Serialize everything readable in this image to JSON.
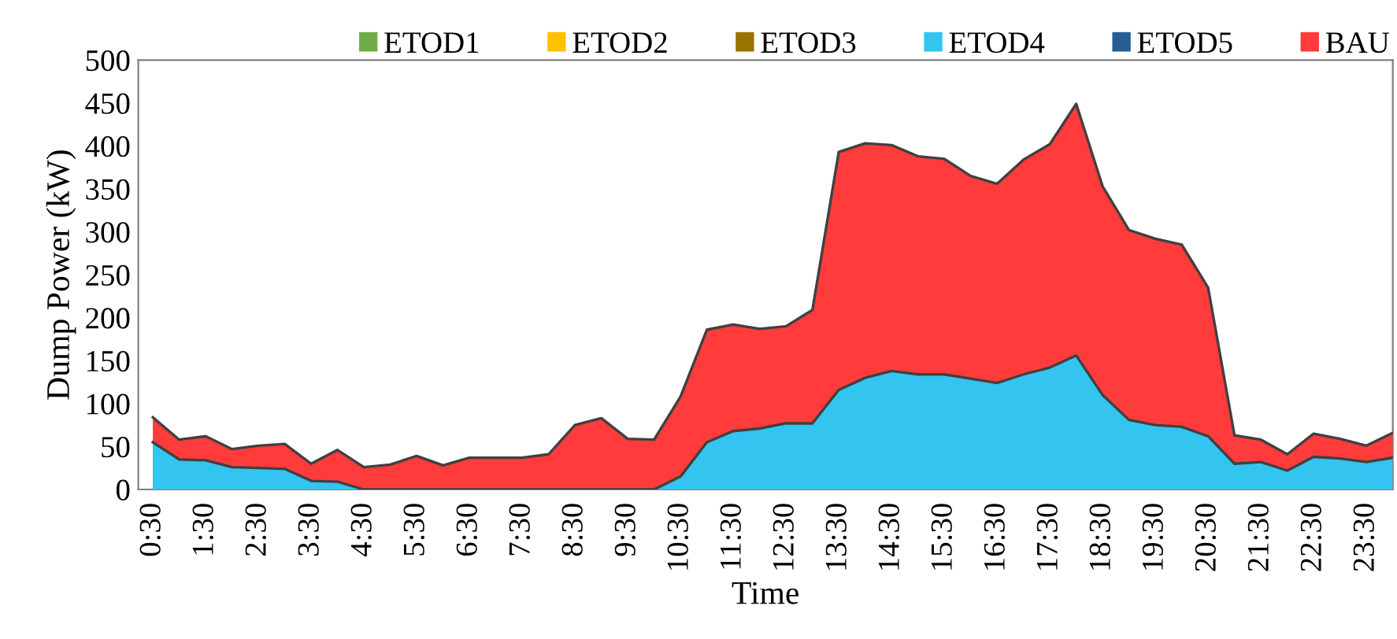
{
  "chart_data": {
    "type": "area",
    "xlabel": "Time",
    "ylabel": "Dump Power (kW)",
    "categories": [
      "0:30",
      null,
      "1:30",
      null,
      "2:30",
      null,
      "3:30",
      null,
      "4:30",
      null,
      "5:30",
      null,
      "6:30",
      null,
      "7:30",
      null,
      "8:30",
      null,
      "9:30",
      null,
      "10:30",
      null,
      "11:30",
      null,
      "12:30",
      null,
      "13:30",
      null,
      "14:30",
      null,
      "15:30",
      null,
      "16:30",
      null,
      "17:30",
      null,
      "18:30",
      null,
      "19:30",
      null,
      "20:30",
      null,
      "21:30",
      null,
      "22:30",
      null,
      "23:30",
      null
    ],
    "series": [
      {
        "name": "ETOD1",
        "color": "#70ad47",
        "values": [
          null,
          null,
          null,
          null,
          null,
          null,
          null,
          null,
          null,
          null,
          null,
          null,
          null,
          null,
          null,
          null,
          null,
          null,
          null,
          null,
          null,
          null,
          null,
          null,
          null,
          null,
          null,
          null,
          null,
          null,
          null,
          null,
          null,
          null,
          null,
          null,
          null,
          null,
          null,
          null,
          null,
          null,
          null,
          null,
          null,
          null,
          null,
          null
        ]
      },
      {
        "name": "ETOD2",
        "color": "#ffc000",
        "values": [
          null,
          null,
          null,
          null,
          null,
          null,
          null,
          null,
          null,
          null,
          null,
          null,
          null,
          null,
          null,
          null,
          null,
          null,
          null,
          null,
          null,
          null,
          null,
          null,
          null,
          null,
          null,
          null,
          null,
          null,
          null,
          null,
          null,
          null,
          null,
          null,
          null,
          null,
          null,
          null,
          null,
          null,
          null,
          null,
          null,
          null,
          null,
          null
        ]
      },
      {
        "name": "ETOD3",
        "color": "#997300",
        "values": [
          null,
          null,
          null,
          null,
          null,
          null,
          null,
          null,
          null,
          null,
          null,
          null,
          null,
          null,
          null,
          null,
          null,
          null,
          null,
          null,
          null,
          null,
          null,
          null,
          null,
          null,
          null,
          null,
          null,
          null,
          null,
          null,
          null,
          null,
          null,
          null,
          null,
          null,
          null,
          null,
          null,
          null,
          null,
          null,
          null,
          null,
          null,
          null
        ]
      },
      {
        "name": "ETOD4",
        "color": "#33c4f0",
        "values": [
          55,
          35,
          34,
          26,
          25,
          24,
          10,
          9,
          0,
          0,
          0,
          0,
          0,
          0,
          0,
          0,
          0,
          0,
          0,
          0,
          15,
          55,
          68,
          71,
          77,
          77,
          116,
          130,
          138,
          134,
          134,
          129,
          124,
          134,
          142,
          156,
          110,
          81,
          75,
          73,
          62,
          30,
          32,
          22,
          38,
          36,
          32,
          37
        ]
      },
      {
        "name": "ETOD5",
        "color": "#255e91",
        "values": [
          null,
          null,
          null,
          null,
          null,
          null,
          null,
          null,
          null,
          null,
          null,
          null,
          null,
          null,
          null,
          null,
          null,
          null,
          null,
          null,
          null,
          null,
          null,
          null,
          null,
          null,
          null,
          null,
          null,
          null,
          null,
          null,
          null,
          null,
          null,
          null,
          null,
          null,
          null,
          null,
          null,
          null,
          null,
          null,
          null,
          null,
          null,
          null
        ]
      },
      {
        "name": "BAU",
        "color": "#ff3b3b",
        "values": [
          84,
          58,
          62,
          47,
          51,
          53,
          30,
          46,
          26,
          29,
          39,
          28,
          37,
          37,
          37,
          41,
          75,
          83,
          59,
          58,
          108,
          186,
          192,
          187,
          190,
          209,
          393,
          403,
          401,
          388,
          385,
          365,
          356,
          384,
          402,
          449,
          353,
          302,
          292,
          285,
          235,
          63,
          58,
          41,
          65,
          59,
          51,
          66
        ]
      }
    ],
    "ylim": [
      0,
      500
    ],
    "yticks": [
      0,
      50,
      100,
      150,
      200,
      250,
      300,
      350,
      400,
      450,
      500
    ],
    "grid": false,
    "legend": "top",
    "marker": "none",
    "line_style": "solid"
  }
}
